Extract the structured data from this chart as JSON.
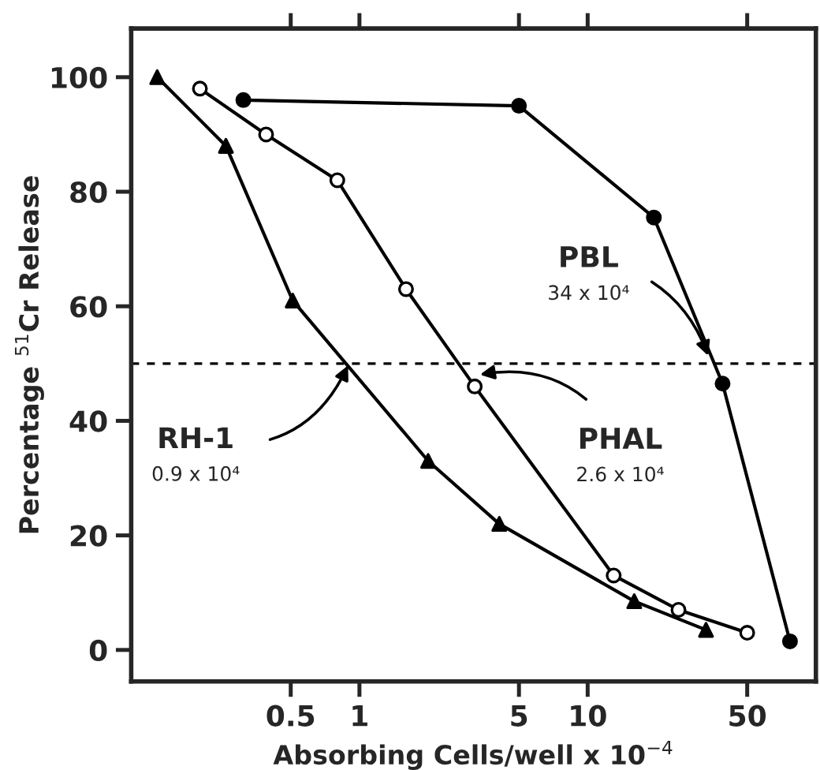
{
  "chart_data": {
    "type": "line",
    "xlabel": "Absorbing Cells/well x 10$^{−4}$",
    "ylabel": "Percentage $^{51}$Cr Release",
    "log": "x",
    "xlim": [
      0.1,
      100
    ],
    "xticks": [
      0.5,
      1,
      5,
      10,
      50
    ],
    "ylim": [
      -5.5,
      108.5
    ],
    "yticks": [
      0,
      20,
      40,
      60,
      80,
      100
    ],
    "grid": false,
    "series": [
      {
        "color": "#000000",
        "marker": "triangle",
        "x": [
          0.13,
          0.26,
          0.51,
          2.0,
          4.1,
          16,
          33
        ],
        "values": [
          100,
          88,
          61,
          33,
          22,
          8.5,
          3.5
        ]
      },
      {
        "color": "#000000",
        "marker": "circle",
        "colors": [
          "#ffffff",
          "#ffffff",
          "#ffffff",
          "#ffffff",
          "#ffffff",
          "#ffffff",
          "#ffffff",
          "#ffffff"
        ],
        "x": [
          0.2,
          0.39,
          0.8,
          1.6,
          3.2,
          13,
          25,
          50
        ],
        "values": [
          98,
          90,
          82,
          63,
          46,
          13,
          7,
          3
        ]
      },
      {
        "color": "#000000",
        "marker": "circle",
        "x": [
          0.31,
          5,
          19.5,
          39,
          77
        ],
        "values": [
          96,
          95,
          75.5,
          46.5,
          1.5
        ]
      }
    ],
    "ref_lines": [
      {
        "axis": "y",
        "value": 50,
        "line_style": "dashed"
      }
    ],
    "annotations": [
      {
        "text": "RH-1\n0.9 x 10⁴",
        "x": 0.9,
        "y": 50
      },
      {
        "text": "PHAL\n2.6 x 10⁴",
        "x": 3.3,
        "y": 48
      },
      {
        "text": "PBL\n34 x 10⁴",
        "x": 34,
        "y": 51
      }
    ]
  }
}
